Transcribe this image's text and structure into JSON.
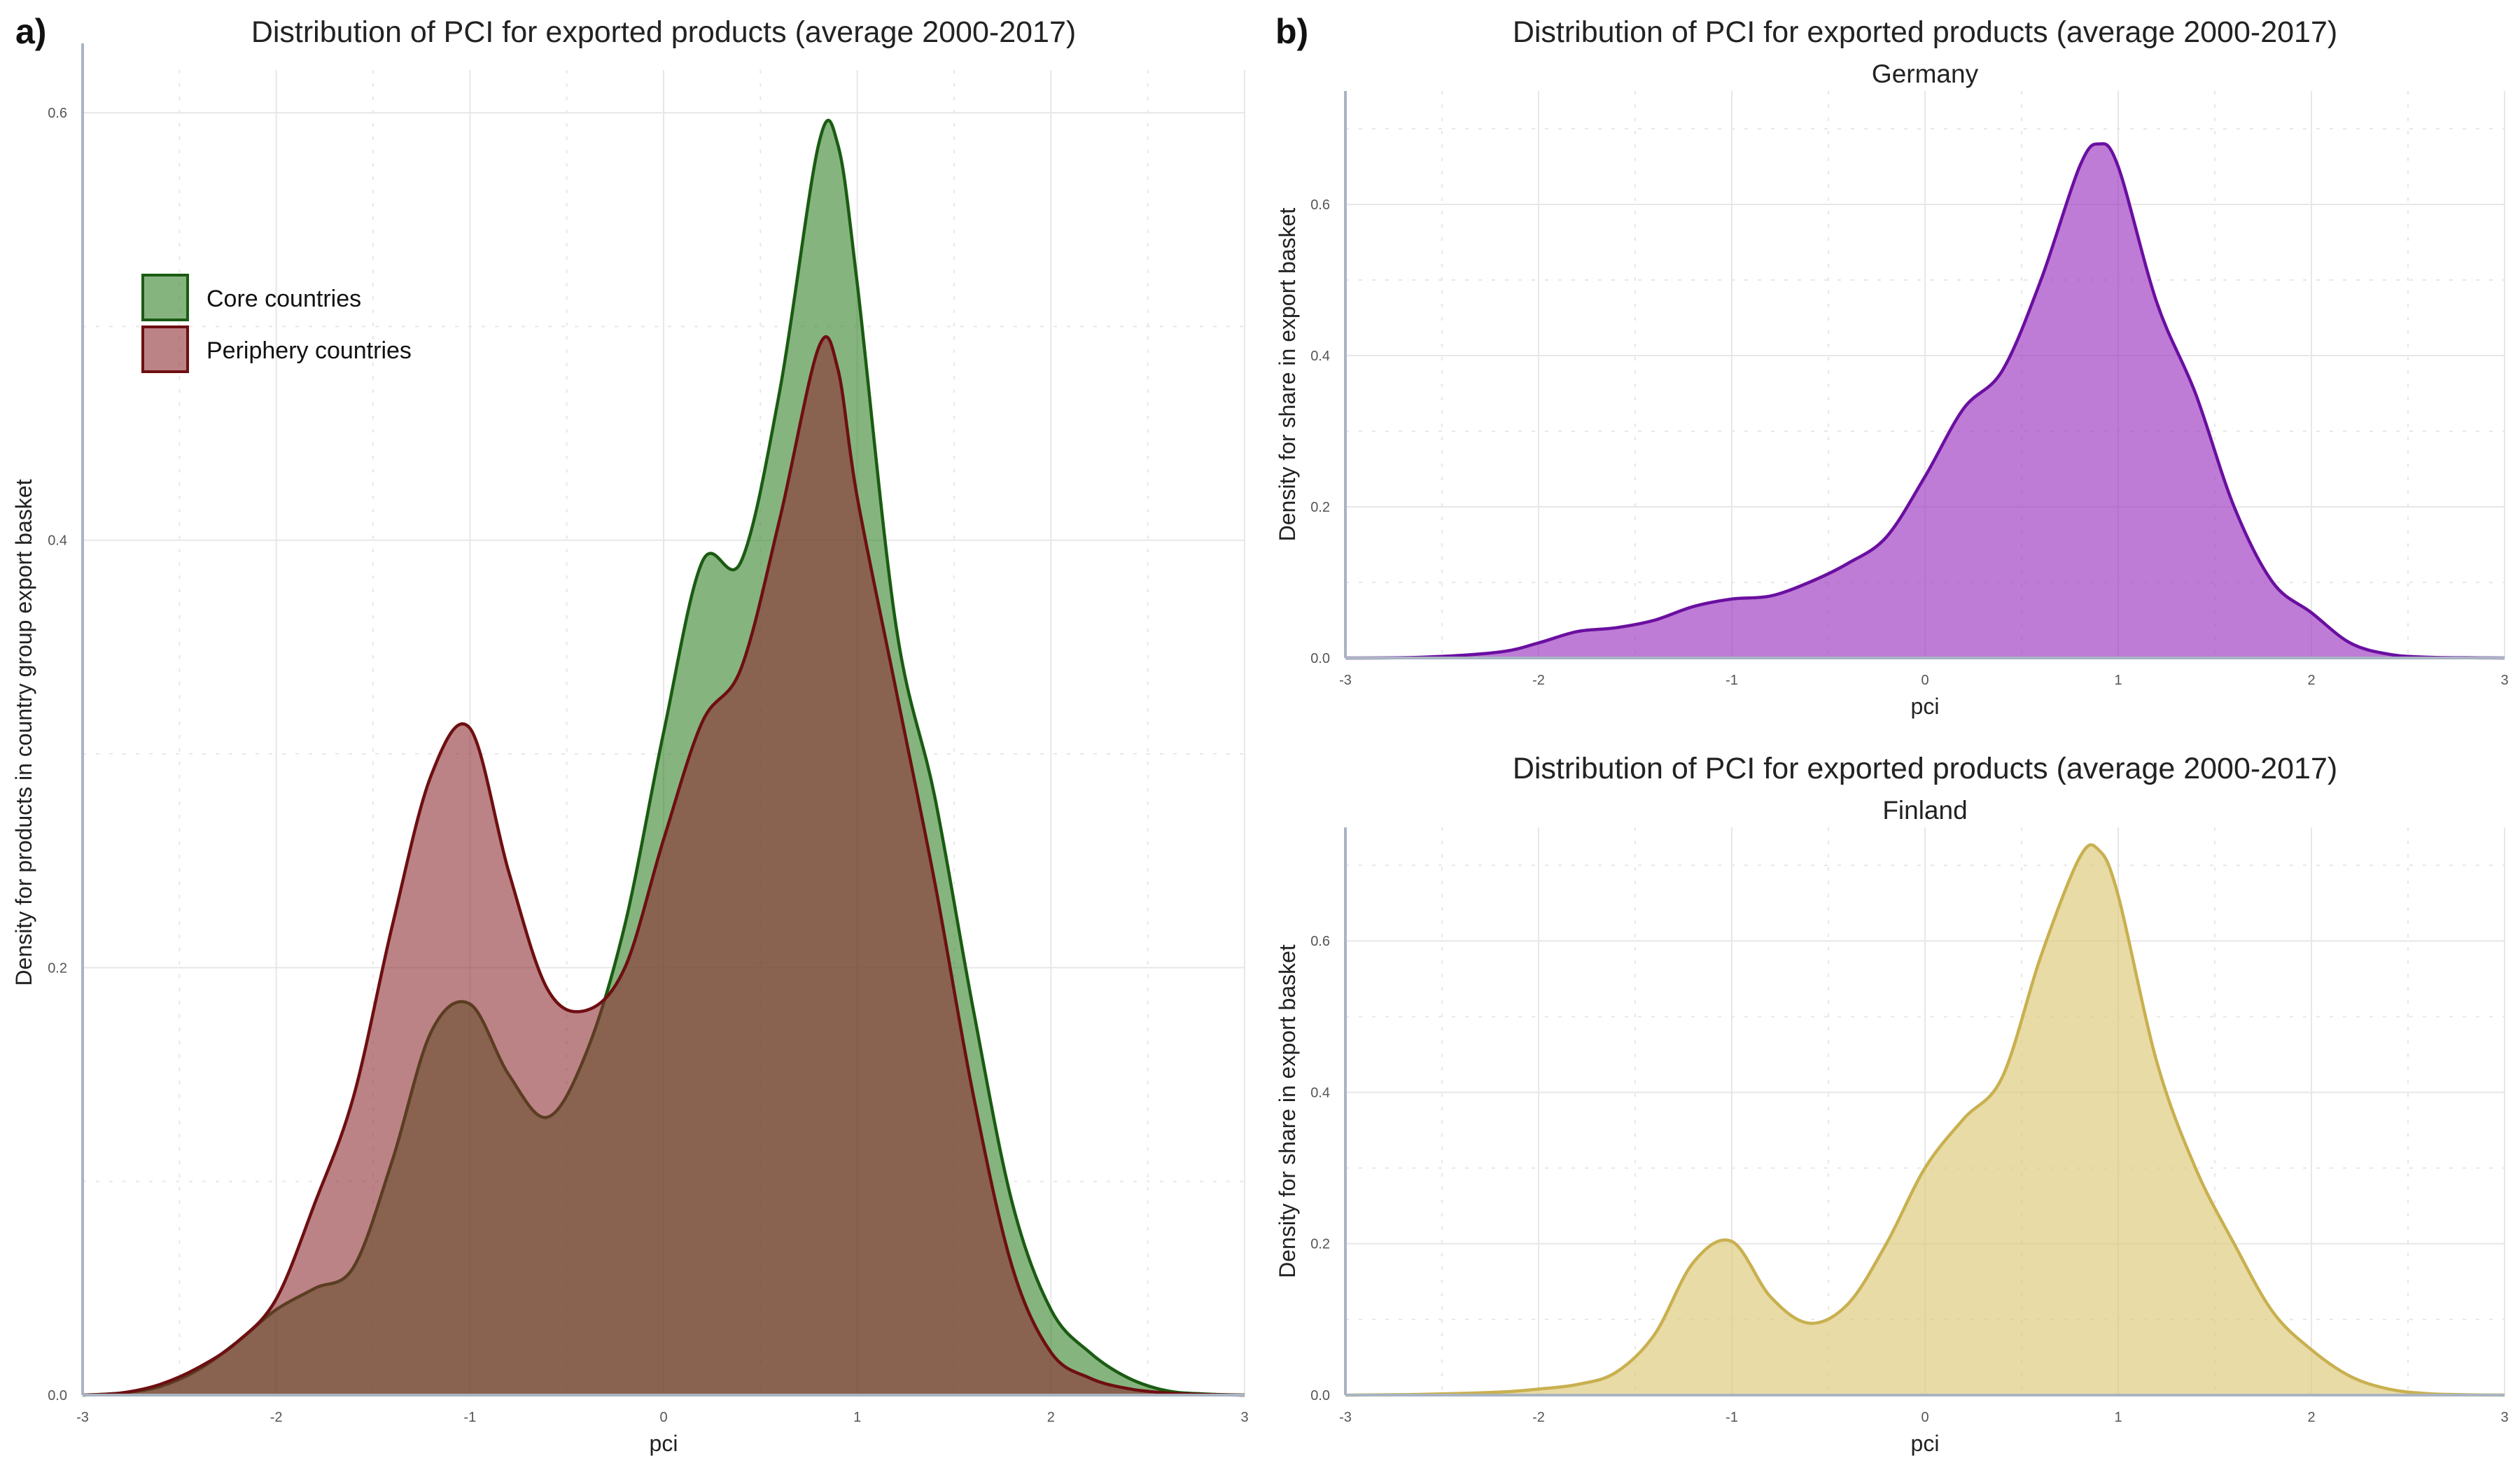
{
  "panels": {
    "a_tag": "a)",
    "b_tag": "b)"
  },
  "colors": {
    "core_fill": "#2e7d22",
    "core_line": "#1a5c12",
    "periphery_fill": "#8b2a2e",
    "periphery_line": "#6e0f12",
    "germany_fill": "#9b36c0",
    "germany_line": "#6a0fa0",
    "finland_fill": "#dcc875",
    "finland_line": "#c9b050",
    "grid": "#e7e7e7",
    "axis": "#a9b4c2"
  },
  "chart_data": [
    {
      "id": "a",
      "type": "area",
      "title": "Distribution of PCI for exported products (average 2000-2017)",
      "xlabel": "pci",
      "ylabel": "Density for products in country group export basket",
      "xlim": [
        -3,
        3
      ],
      "ylim": [
        0,
        0.62
      ],
      "xticks": [
        "-3",
        "-2",
        "-1",
        "0",
        "1",
        "2",
        "3"
      ],
      "yticks": [
        "0.0",
        "0.2",
        "0.4",
        "0.6"
      ],
      "grid": true,
      "legend_position": "top-left",
      "x": [
        -3.0,
        -2.8,
        -2.6,
        -2.4,
        -2.2,
        -2.0,
        -1.8,
        -1.6,
        -1.4,
        -1.2,
        -1.0,
        -0.8,
        -0.6,
        -0.4,
        -0.2,
        0.0,
        0.2,
        0.4,
        0.6,
        0.8,
        0.9,
        1.0,
        1.2,
        1.4,
        1.6,
        1.8,
        2.0,
        2.2,
        2.4,
        2.6,
        2.8,
        3.0
      ],
      "series": [
        {
          "name": "Core countries",
          "values": [
            0.0,
            0.001,
            0.004,
            0.012,
            0.025,
            0.04,
            0.05,
            0.06,
            0.11,
            0.17,
            0.183,
            0.15,
            0.13,
            0.16,
            0.22,
            0.31,
            0.39,
            0.39,
            0.47,
            0.585,
            0.585,
            0.52,
            0.36,
            0.28,
            0.18,
            0.09,
            0.04,
            0.02,
            0.008,
            0.002,
            0.0005,
            0.0
          ]
        },
        {
          "name": "Periphery countries",
          "values": [
            0.0,
            0.001,
            0.005,
            0.013,
            0.025,
            0.045,
            0.09,
            0.14,
            0.22,
            0.29,
            0.312,
            0.245,
            0.19,
            0.18,
            0.2,
            0.26,
            0.315,
            0.34,
            0.41,
            0.49,
            0.48,
            0.42,
            0.33,
            0.24,
            0.14,
            0.06,
            0.02,
            0.008,
            0.003,
            0.001,
            0.0003,
            0.0
          ]
        }
      ]
    },
    {
      "id": "b-top",
      "type": "area",
      "title": "Distribution of PCI for exported products (average 2000-2017)",
      "subtitle": "Germany",
      "xlabel": "pci",
      "ylabel": "Density for share in export basket",
      "xlim": [
        -3,
        3
      ],
      "ylim": [
        0,
        0.75
      ],
      "xticks": [
        "-3",
        "-2",
        "-1",
        "0",
        "1",
        "2",
        "3"
      ],
      "yticks": [
        "0.0",
        "0.2",
        "0.4",
        "0.6"
      ],
      "grid": true,
      "x": [
        -3.0,
        -2.6,
        -2.2,
        -2.0,
        -1.8,
        -1.6,
        -1.4,
        -1.2,
        -1.0,
        -0.8,
        -0.6,
        -0.4,
        -0.2,
        0.0,
        0.2,
        0.4,
        0.6,
        0.8,
        0.9,
        1.0,
        1.2,
        1.4,
        1.6,
        1.8,
        2.0,
        2.2,
        2.4,
        2.6,
        2.8,
        3.0
      ],
      "values": [
        0.0,
        0.001,
        0.008,
        0.02,
        0.035,
        0.04,
        0.05,
        0.068,
        0.078,
        0.082,
        0.1,
        0.125,
        0.16,
        0.24,
        0.33,
        0.38,
        0.5,
        0.65,
        0.68,
        0.65,
        0.47,
        0.35,
        0.2,
        0.1,
        0.06,
        0.02,
        0.005,
        0.001,
        0.0003,
        0.0
      ]
    },
    {
      "id": "b-bottom",
      "type": "area",
      "title": "Distribution of PCI for exported products (average 2000-2017)",
      "subtitle": "Finland",
      "xlabel": "pci",
      "ylabel": "Density for share in export basket",
      "xlim": [
        -3,
        3
      ],
      "ylim": [
        0,
        0.75
      ],
      "xticks": [
        "-3",
        "-2",
        "-1",
        "0",
        "1",
        "2",
        "3"
      ],
      "yticks": [
        "0.0",
        "0.2",
        "0.4",
        "0.6"
      ],
      "grid": true,
      "x": [
        -3.0,
        -2.6,
        -2.2,
        -2.0,
        -1.8,
        -1.6,
        -1.4,
        -1.2,
        -1.0,
        -0.8,
        -0.6,
        -0.4,
        -0.2,
        0.0,
        0.2,
        0.4,
        0.6,
        0.8,
        0.9,
        1.0,
        1.2,
        1.4,
        1.6,
        1.8,
        2.0,
        2.2,
        2.4,
        2.6,
        2.8,
        3.0
      ],
      "values": [
        0.0,
        0.001,
        0.004,
        0.008,
        0.014,
        0.03,
        0.08,
        0.175,
        0.203,
        0.13,
        0.095,
        0.12,
        0.2,
        0.3,
        0.365,
        0.42,
        0.58,
        0.71,
        0.72,
        0.66,
        0.44,
        0.3,
        0.2,
        0.11,
        0.06,
        0.025,
        0.008,
        0.002,
        0.0005,
        0.0
      ]
    }
  ]
}
